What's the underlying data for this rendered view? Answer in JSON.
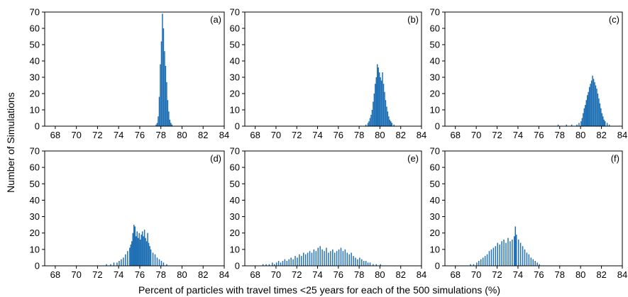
{
  "figure": {
    "ylabel": "Number of Simulations",
    "xlabel": "Percent of particles with travel times <25 years for each of the 500 simulations (%)"
  },
  "chart_data": [
    {
      "type": "bar",
      "panel_label": "(a)",
      "xlim": [
        67,
        84
      ],
      "ylim": [
        0,
        70
      ],
      "xticks": [
        68,
        70,
        72,
        74,
        76,
        78,
        80,
        82,
        84
      ],
      "yticks": [
        0,
        10,
        20,
        30,
        40,
        50,
        60,
        70
      ],
      "bin_width": 0.1,
      "bar_color": "#1f6fb4",
      "bins": [
        [
          77.5,
          1
        ],
        [
          77.6,
          2
        ],
        [
          77.7,
          6
        ],
        [
          77.8,
          18
        ],
        [
          77.9,
          38
        ],
        [
          78.0,
          52
        ],
        [
          78.1,
          69
        ],
        [
          78.2,
          60
        ],
        [
          78.3,
          46
        ],
        [
          78.4,
          37
        ],
        [
          78.5,
          27
        ],
        [
          78.6,
          16
        ],
        [
          78.7,
          9
        ],
        [
          78.8,
          4
        ],
        [
          78.9,
          2
        ],
        [
          79.0,
          1
        ]
      ]
    },
    {
      "type": "bar",
      "panel_label": "(b)",
      "xlim": [
        67,
        84
      ],
      "ylim": [
        0,
        70
      ],
      "xticks": [
        68,
        70,
        72,
        74,
        76,
        78,
        80,
        82,
        84
      ],
      "yticks": [
        0,
        10,
        20,
        30,
        40,
        50,
        60,
        70
      ],
      "bin_width": 0.1,
      "bar_color": "#1f6fb4",
      "bins": [
        [
          78.6,
          1
        ],
        [
          78.8,
          2
        ],
        [
          78.9,
          3
        ],
        [
          79.0,
          5
        ],
        [
          79.1,
          7
        ],
        [
          79.2,
          10
        ],
        [
          79.3,
          15
        ],
        [
          79.4,
          20
        ],
        [
          79.5,
          26
        ],
        [
          79.6,
          30
        ],
        [
          79.7,
          38
        ],
        [
          79.8,
          36
        ],
        [
          79.9,
          33
        ],
        [
          80.0,
          30
        ],
        [
          80.1,
          28
        ],
        [
          80.2,
          33
        ],
        [
          80.3,
          26
        ],
        [
          80.4,
          21
        ],
        [
          80.5,
          16
        ],
        [
          80.6,
          12
        ],
        [
          80.7,
          9
        ],
        [
          80.8,
          6
        ],
        [
          80.9,
          4
        ],
        [
          81.0,
          3
        ],
        [
          81.1,
          2
        ],
        [
          81.3,
          1
        ]
      ]
    },
    {
      "type": "bar",
      "panel_label": "(c)",
      "xlim": [
        67,
        84
      ],
      "ylim": [
        0,
        70
      ],
      "xticks": [
        68,
        70,
        72,
        74,
        76,
        78,
        80,
        82,
        84
      ],
      "yticks": [
        0,
        10,
        20,
        30,
        40,
        50,
        60,
        70
      ],
      "bin_width": 0.1,
      "bar_color": "#1f6fb4",
      "bins": [
        [
          77.8,
          1
        ],
        [
          78.6,
          1
        ],
        [
          79.1,
          1
        ],
        [
          79.6,
          1
        ],
        [
          79.8,
          2
        ],
        [
          80.0,
          3
        ],
        [
          80.1,
          5
        ],
        [
          80.2,
          8
        ],
        [
          80.3,
          11
        ],
        [
          80.4,
          13
        ],
        [
          80.5,
          16
        ],
        [
          80.6,
          19
        ],
        [
          80.7,
          21
        ],
        [
          80.8,
          24
        ],
        [
          80.9,
          26
        ],
        [
          81.0,
          28
        ],
        [
          81.1,
          31
        ],
        [
          81.2,
          29
        ],
        [
          81.3,
          27
        ],
        [
          81.4,
          25
        ],
        [
          81.5,
          23
        ],
        [
          81.6,
          20
        ],
        [
          81.7,
          17
        ],
        [
          81.8,
          14
        ],
        [
          81.9,
          11
        ],
        [
          82.0,
          8
        ],
        [
          82.1,
          6
        ],
        [
          82.2,
          4
        ],
        [
          82.3,
          3
        ],
        [
          82.5,
          2
        ],
        [
          82.7,
          1
        ]
      ]
    },
    {
      "type": "bar",
      "panel_label": "(d)",
      "xlim": [
        67,
        84
      ],
      "ylim": [
        0,
        70
      ],
      "xticks": [
        68,
        70,
        72,
        74,
        76,
        78,
        80,
        82,
        84
      ],
      "yticks": [
        0,
        10,
        20,
        30,
        40,
        50,
        60,
        70
      ],
      "bin_width": 0.1,
      "bar_color": "#1f6fb4",
      "bins": [
        [
          72.8,
          1
        ],
        [
          73.2,
          1
        ],
        [
          73.5,
          2
        ],
        [
          73.8,
          2
        ],
        [
          74.0,
          3
        ],
        [
          74.2,
          4
        ],
        [
          74.4,
          5
        ],
        [
          74.6,
          7
        ],
        [
          74.8,
          9
        ],
        [
          75.0,
          11
        ],
        [
          75.1,
          13
        ],
        [
          75.2,
          15
        ],
        [
          75.3,
          20
        ],
        [
          75.4,
          25
        ],
        [
          75.5,
          24
        ],
        [
          75.6,
          18
        ],
        [
          75.7,
          21
        ],
        [
          75.8,
          17
        ],
        [
          75.9,
          20
        ],
        [
          76.0,
          16
        ],
        [
          76.1,
          19
        ],
        [
          76.2,
          21
        ],
        [
          76.3,
          18
        ],
        [
          76.4,
          22
        ],
        [
          76.5,
          17
        ],
        [
          76.6,
          15
        ],
        [
          76.7,
          20
        ],
        [
          76.8,
          14
        ],
        [
          76.9,
          12
        ],
        [
          77.0,
          10
        ],
        [
          77.2,
          8
        ],
        [
          77.4,
          7
        ],
        [
          77.6,
          5
        ],
        [
          77.8,
          4
        ],
        [
          78.0,
          3
        ],
        [
          78.2,
          2
        ],
        [
          78.5,
          1
        ]
      ]
    },
    {
      "type": "bar",
      "panel_label": "(e)",
      "xlim": [
        67,
        84
      ],
      "ylim": [
        0,
        70
      ],
      "xticks": [
        68,
        70,
        72,
        74,
        76,
        78,
        80,
        82,
        84
      ],
      "yticks": [
        0,
        10,
        20,
        30,
        40,
        50,
        60,
        70
      ],
      "bin_width": 0.1,
      "bar_color": "#1f6fb4",
      "bins": [
        [
          68.7,
          1
        ],
        [
          69.0,
          1
        ],
        [
          69.3,
          1
        ],
        [
          69.6,
          2
        ],
        [
          69.8,
          1
        ],
        [
          70.0,
          2
        ],
        [
          70.2,
          3
        ],
        [
          70.4,
          2
        ],
        [
          70.6,
          3
        ],
        [
          70.8,
          4
        ],
        [
          71.0,
          3
        ],
        [
          71.2,
          4
        ],
        [
          71.4,
          5
        ],
        [
          71.6,
          4
        ],
        [
          71.8,
          6
        ],
        [
          72.0,
          5
        ],
        [
          72.2,
          7
        ],
        [
          72.4,
          6
        ],
        [
          72.6,
          8
        ],
        [
          72.8,
          7
        ],
        [
          73.0,
          8
        ],
        [
          73.2,
          9
        ],
        [
          73.4,
          8
        ],
        [
          73.6,
          10
        ],
        [
          73.8,
          9
        ],
        [
          74.0,
          11
        ],
        [
          74.2,
          12
        ],
        [
          74.4,
          10
        ],
        [
          74.6,
          9
        ],
        [
          74.8,
          11
        ],
        [
          75.0,
          8
        ],
        [
          75.2,
          9
        ],
        [
          75.4,
          10
        ],
        [
          75.6,
          8
        ],
        [
          75.8,
          9
        ],
        [
          76.0,
          10
        ],
        [
          76.2,
          11
        ],
        [
          76.4,
          9
        ],
        [
          76.6,
          10
        ],
        [
          76.8,
          8
        ],
        [
          77.0,
          7
        ],
        [
          77.2,
          8
        ],
        [
          77.4,
          6
        ],
        [
          77.6,
          5
        ],
        [
          77.8,
          4
        ],
        [
          78.0,
          5
        ],
        [
          78.2,
          4
        ],
        [
          78.4,
          3
        ],
        [
          78.6,
          3
        ],
        [
          78.8,
          2
        ],
        [
          79.0,
          2
        ],
        [
          79.3,
          1
        ],
        [
          79.6,
          1
        ],
        [
          80.0,
          1
        ]
      ]
    },
    {
      "type": "bar",
      "panel_label": "(f)",
      "xlim": [
        67,
        84
      ],
      "ylim": [
        0,
        70
      ],
      "xticks": [
        68,
        70,
        72,
        74,
        76,
        78,
        80,
        82,
        84
      ],
      "yticks": [
        0,
        10,
        20,
        30,
        40,
        50,
        60,
        70
      ],
      "bin_width": 0.1,
      "bar_color": "#1f6fb4",
      "bins": [
        [
          69.4,
          1
        ],
        [
          69.7,
          1
        ],
        [
          70.0,
          2
        ],
        [
          70.2,
          3
        ],
        [
          70.4,
          4
        ],
        [
          70.6,
          5
        ],
        [
          70.8,
          6
        ],
        [
          71.0,
          7
        ],
        [
          71.2,
          9
        ],
        [
          71.4,
          10
        ],
        [
          71.6,
          11
        ],
        [
          71.8,
          12
        ],
        [
          72.0,
          14
        ],
        [
          72.2,
          13
        ],
        [
          72.4,
          15
        ],
        [
          72.6,
          16
        ],
        [
          72.8,
          14
        ],
        [
          73.0,
          17
        ],
        [
          73.2,
          15
        ],
        [
          73.4,
          16
        ],
        [
          73.6,
          18
        ],
        [
          73.7,
          24
        ],
        [
          73.8,
          19
        ],
        [
          74.0,
          16
        ],
        [
          74.2,
          14
        ],
        [
          74.4,
          12
        ],
        [
          74.6,
          10
        ],
        [
          74.8,
          8
        ],
        [
          75.0,
          7
        ],
        [
          75.2,
          5
        ],
        [
          75.4,
          4
        ],
        [
          75.6,
          3
        ],
        [
          75.8,
          2
        ],
        [
          76.0,
          1
        ]
      ]
    }
  ]
}
